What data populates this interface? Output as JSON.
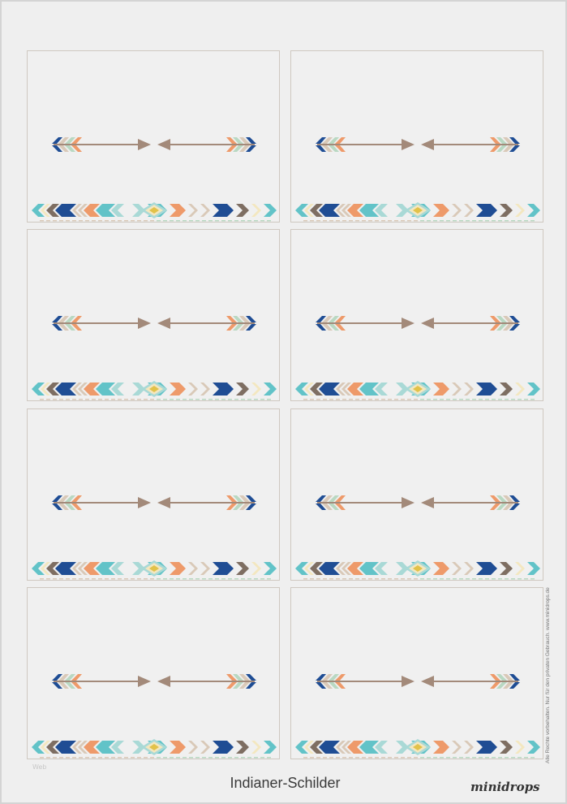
{
  "document": {
    "title": "Indianer-Schilder",
    "brand": "minidrops",
    "copyright": "Alle Rechte vorbehalten. Nur für den privaten Gebrauch. www.minidrops.de",
    "small_label": "Web",
    "card_count": 8
  },
  "colors": {
    "navy": "#1f4d94",
    "teal": "#62c3c8",
    "light_teal": "#a9d9d6",
    "orange": "#ee9a6a",
    "beige": "#d9c9b8",
    "brown": "#7e6e62",
    "cream": "#f3e7c0",
    "yellow": "#e2c24a",
    "mint": "#b9d8c2",
    "shaft": "#a38a7a",
    "border": "#cfc8c0"
  }
}
